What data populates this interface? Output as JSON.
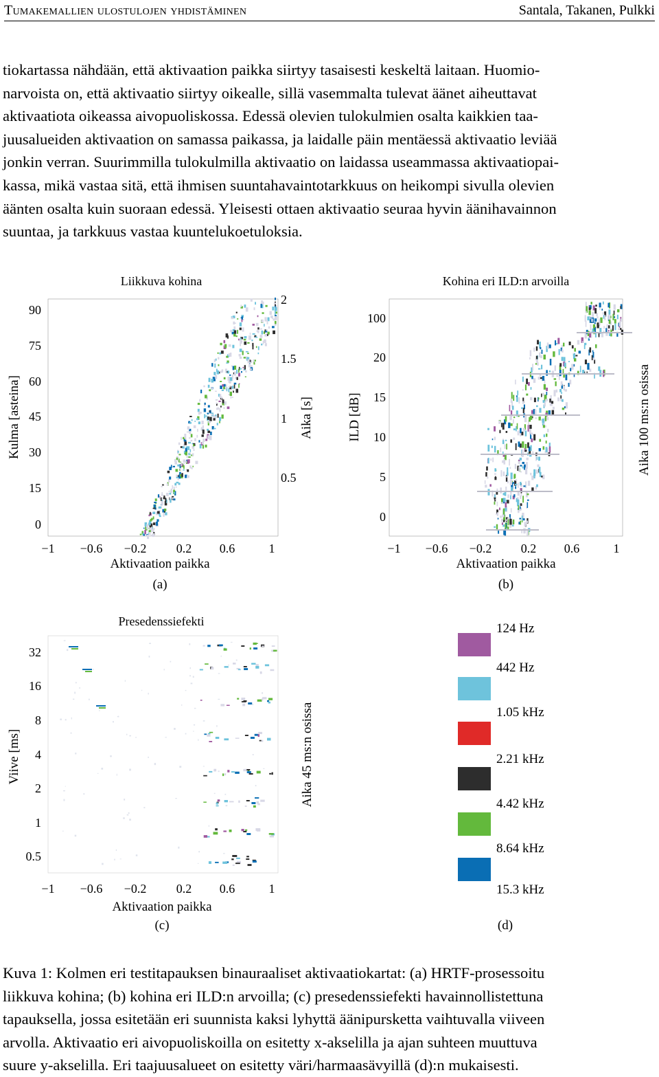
{
  "header": {
    "left": "Tumakemallien ulostulojen yhdistäminen",
    "right": "Santala, Takanen, Pulkki"
  },
  "body_lines": [
    "tiokartassa nähdään, että aktivaation paikka siirtyy tasaisesti keskeltä laitaan. Huomio-",
    "narvoista on, että aktivaatio siirtyy oikealle, sillä vasemmalta tulevat äänet aiheuttavat",
    "aktivaatiota oikeassa aivopuoliskossa. Edessä olevien tulokulmien osalta kaikkien taa-",
    "juusalueiden aktivaation on samassa paikassa, ja laidalle päin mentäessä aktivaatio leviää",
    "jonkin verran. Suurimmilla tulokulmilla aktivaatio on laidassa useammassa aktivaatiopai-",
    "kassa, mikä vastaa sitä, että ihmisen suuntahavaintotarkkuus on heikompi sivulla olevien",
    "äänten osalta kuin suoraan edessä. Yleisesti ottaen aktivaatio seuraa hyvin äänihavainnon",
    "suuntaa, ja tarkkuus vastaa kuuntelukoetuloksia."
  ],
  "caption_lines": [
    "Kuva 1: Kolmen eri testitapauksen binauraaliset aktivaatiokartat: (a) HRTF-prosessoitu",
    "liikkuva kohina; (b) kohina eri ILD:n arvoilla; (c) presedenssiefekti havainnollistettuna",
    "tapauksella, jossa esitetään eri suunnista kaksi lyhyttä äänipursketta vaihtuvalla viiveen",
    "arvolla. Aktivaatio eri aivopuoliskoilla on esitetty x-akselilla ja ajan suhteen muuttuva",
    "suure y-akselilla. Eri taajuusalueet on esitetty väri/harmaasävyillä (d):n mukaisesti."
  ],
  "panels": {
    "a": {
      "title": "Liikkuva kohina",
      "ylabel": "Kulma [asteina]",
      "y_ticks": [
        "90",
        "75",
        "60",
        "45",
        "30",
        "15",
        "0"
      ],
      "y2label": "Aika [s]",
      "y2_ticks": [
        "2",
        "1.5",
        "1",
        "0.5"
      ],
      "x_ticks": [
        "−1",
        "−0.6",
        "−0.2",
        "0.2",
        "0.6",
        "1"
      ],
      "xlabel": "Aktivaation paikka",
      "sublabel": "(a)"
    },
    "b": {
      "title": "Kohina eri ILD:n arvoilla",
      "ylabel": "ILD [dB]",
      "y_ticks": [
        "100",
        "20",
        "15",
        "10",
        "5",
        "0"
      ],
      "y2label": "Aika 100 ms:n osissa",
      "x_ticks": [
        "−1",
        "−0.6",
        "−0.2",
        "0.2",
        "0.6",
        "1"
      ],
      "xlabel": "Aktivaation paikka",
      "sublabel": "(b)"
    },
    "c": {
      "title": "Presedenssiefekti",
      "ylabel": "Viive [ms]",
      "y_ticks": [
        "32",
        "16",
        "8",
        "4",
        "2",
        "1",
        "0.5"
      ],
      "y2label": "Aika 45 ms:n osissa",
      "x_ticks": [
        "−1",
        "−0.6",
        "−0.2",
        "0.2",
        "0.6",
        "1"
      ],
      "xlabel": "Aktivaation paikka",
      "sublabel": "(c)"
    },
    "d": {
      "legend": [
        {
          "label": "124 Hz",
          "color": "#a05aa0"
        },
        {
          "label": "442 Hz",
          "color": "#6ec3dc"
        },
        {
          "label": "1.05 kHz",
          "color": "#e02a28"
        },
        {
          "label": "2.21 kHz",
          "color": "#2d2d2d"
        },
        {
          "label": "4.42 kHz",
          "color": "#63b93c"
        },
        {
          "label": "8.64 kHz",
          "color": "#0a6eb4"
        },
        {
          "label": "15.3 kHz",
          "color": ""
        }
      ],
      "sublabel": "(d)"
    }
  }
}
